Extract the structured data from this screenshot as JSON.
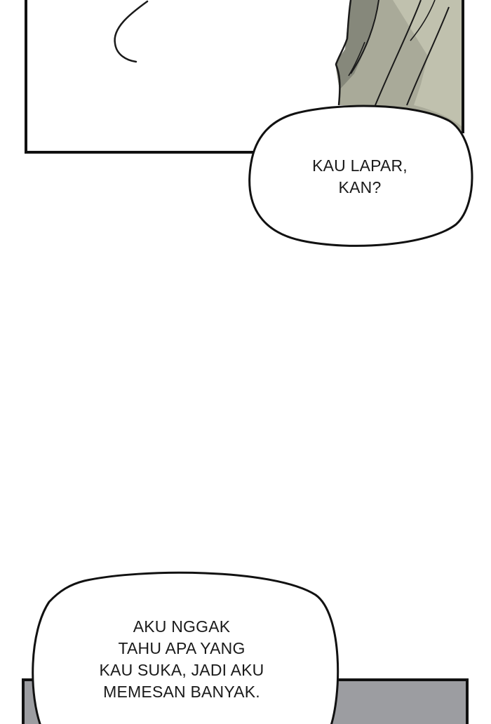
{
  "comic": {
    "bubbles": [
      {
        "lines": [
          "KAU LAPAR,",
          "KAN?"
        ]
      },
      {
        "lines": [
          "AKU NGGAK",
          "TAHU APA YANG",
          "KAU SUKA, JADI AKU",
          "MEMESAN BANYAK."
        ]
      }
    ]
  },
  "colors": {
    "background": "#ffffff",
    "outline": "#111111",
    "cloth_light": "#b8b9a6",
    "cloth_dark": "#7d7f72",
    "bottom_panel": "#9c9da1"
  }
}
